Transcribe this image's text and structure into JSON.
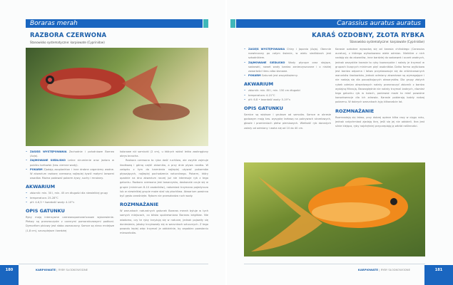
{
  "left": {
    "latin_name": "Boraras merah",
    "title": "RAZBORA CZERWONA",
    "systematics": "Stanowisko systematyczne: karpiowate (Cyprinidae)",
    "facts": [
      {
        "label": "ZASIĘG WYSTĘPOWANIA",
        "text": "Zachodnie i południowe Borneo (Azja)."
      },
      {
        "label": "ZAJMOWANE SIEDLISKO",
        "text": "Leśne strumienie oraz jeziora w pobliżu torfowisk (tzw. ciemne wody)."
      },
      {
        "label": "POKARM",
        "text": "Zjadają zooplankton i inne drobne organizmy wodne. W akwarium razborę czerwoną najlepiej żywić małymi larwami owadów. Można podawać pokarm żywy, suchy i mrożony."
      }
    ],
    "aquarium_heading": "AKWARIUM",
    "aquarium": [
      "zbiornik: min. 30 l, min. 45 cm długości dla niewielkiej grupy",
      "temperatura: 25-28°C",
      "pH: 4-6,5 • twardość wody: 4-10°n"
    ],
    "species_heading": "OPIS GATUNKU",
    "species_p1": "Ryby mają intensywne czerwonopomarańczowe wybarwienie. Płetwy są przezroczyste z czarnymi pomarańczowymi podkoni. Dymorfizm płciowy jest słabo zaznaczony. Samce są nieco mniejsze (1,8 cm), szczuplejsze i bardziej",
    "species_p2": "kolorowe niż samiczki (2 cm), u których widać lekko zaokrąglony obrys brzucha.",
    "species_p3": "Razbora czerwona to ryba dość ruchliwa, ale zwykle zajmuje środkową i górną część zbiornika, a przy dnie pływa rzadko. W związku z tym do karmienia najlepiej używać pokarmów pływających, najlepiej pochodzenia naturalnego. Pokarm, który opadnie na dno akwarium raczej już nie interesuje ryb z tego gatunku. Razbora czerwona jest towarzyska, doskonale czuje się w grupie (minimum 8-10 osobników), natomiast trzymana pojedynczo lub w niewielkiej grupie może stać się płochliwa. Akwarium powinno być gęsto zarośnięte. Rybom nie przeszkadza ruch wody.",
    "breeding_heading": "ROZMNAŻANIE",
    "breeding": "W warunkach naturalnych gatunek Boraras merah byłuje w tych samych miejscach, co blisko spokrewniona Boraras brigittae. Nie wiadomo, czy te ryby krzyżują się w naturze, jednak pojawiły się doniesienia, jakoby krzyżowały się w warunkach sztucznych. Z tego powodu lepiej więc trzymać je oddzielnie, by zapobiec powstaniu mieszańców.",
    "page_number": "180",
    "footer_section": "KARPIOWATE",
    "footer_sep": "|",
    "footer_category": "RYBY SŁODKOWODNE"
  },
  "right": {
    "latin_name": "Carassius auratus auratus",
    "title": "KARAŚ OZDOBNY, ZŁOTA RYBKA",
    "systematics": "Stanowisko systematyczne: karpiowate (Cyprinidae)",
    "facts": [
      {
        "label": "ZASIĘG WYSTĘPOWANIA",
        "text": "Chiny i Japonia (Azja). Obecnie rozwleczony po całym świecie, w wielu siedliskach jest szkodnikiem."
      },
      {
        "label": "ZAJMOWANE SIEDLISKO",
        "text": "Wody płynące oraz stojące, sadzawki, nawet wody bardzo zanieczyszczone i o niskiej zawartości tlenu albo słonawe."
      },
      {
        "label": "POKARM",
        "text": "Gatunek jest wszystkożerny."
      }
    ],
    "aquarium_heading": "AKWARIUM",
    "aquarium": [
      "zbiornik: min. 80 l, min. 150 cm długości",
      "temperatura: 4-21°C",
      "pH: 6-8 • twardość wody: 5-19°n"
    ],
    "species_heading": "OPIS GATUNKU",
    "species_p1": "Samice są większe i grubsze od samców. Samce w okresie godowym mają tzw. wysypkę tarłową na pokrywach skrzelowych, głowie i promieniach płetw piersiowych. Wielkość ryb dorosłych zależy od odmiany i waha się od 10 do 40 cm.",
    "species_p2": "Karasie ozdobne wywodzą się od karasia chińskiego (Carassius auratus), z którego wyhodowano wiele odmian. Niektóre z nich nadają się do akwariów, inne bardziej do sadzawek i oczek wodnych, jednak wszystkie karasie to ryby towarzyskie i należy je trzymać w grupach liczących minimum pięć osobników. Dzika forma wyjściowa jest bardzo odporna i łatwo przystosowuje się do zróżnicowanych warunków środowiska, jednak odmiany akwariowe są wymagające i nie nadają się dla początkujących akwarystów. Dla grupy złotych rybek odmian akwariowych należy przeznaczyć zbiornik z bardzo wydajną filtracją. Bezwzględnie nie należy trzymać żadnych, również tego gatunku ryb w kulach, ponieważ może to mieć poważne konsekwencje dla ich zdrowia. Karasie pobierają każdy rodzaj pokarmu. W dobrych warunkach żyją kilkanaście lat.",
    "breeding_heading": "ROZMNAŻANIE",
    "breeding": "Rozmnażają się łatwo, przy dobrej opiece kilka razy w ciągu roku, jednak natychmiast zjadają ikrę, jeśli się jej nie oddzieli. Ikra jest silnie klejąca, ryby najchętniej przyczepiają ją wśród roślinności.",
    "page_number": "181",
    "footer_section": "KARPIOWATE",
    "footer_sep": "|",
    "footer_category": "RYBY SŁODKOWODNE"
  },
  "colors": {
    "brand_blue": "#1a66c0",
    "teal": "#3fb7b9",
    "heading_blue": "#1a5ea9"
  }
}
